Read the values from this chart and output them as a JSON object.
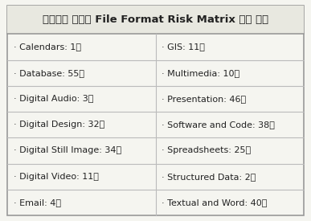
{
  "title": "전자기록 유형별 File Format Risk Matrix 평가 현황",
  "left_items": [
    "· Calendars: 1개",
    "· Database: 55개",
    "· Digital Audio: 3개",
    "· Digital Design: 32개",
    "· Digital Still Image: 34개",
    "· Digital Video: 11개",
    "· Email: 4개"
  ],
  "right_items": [
    "· GIS: 11개",
    "· Multimedia: 10개",
    "· Presentation: 46개",
    "· Software and Code: 38개",
    "· Spreadsheets: 25개",
    "· Structured Data: 2개",
    "· Textual and Word: 40개"
  ],
  "background_color": "#f5f5f0",
  "title_bg_color": "#e8e8e0",
  "border_color": "#999999",
  "divider_color": "#bbbbbb",
  "text_color": "#222222",
  "title_fontsize": 9.5,
  "cell_fontsize": 8.0
}
